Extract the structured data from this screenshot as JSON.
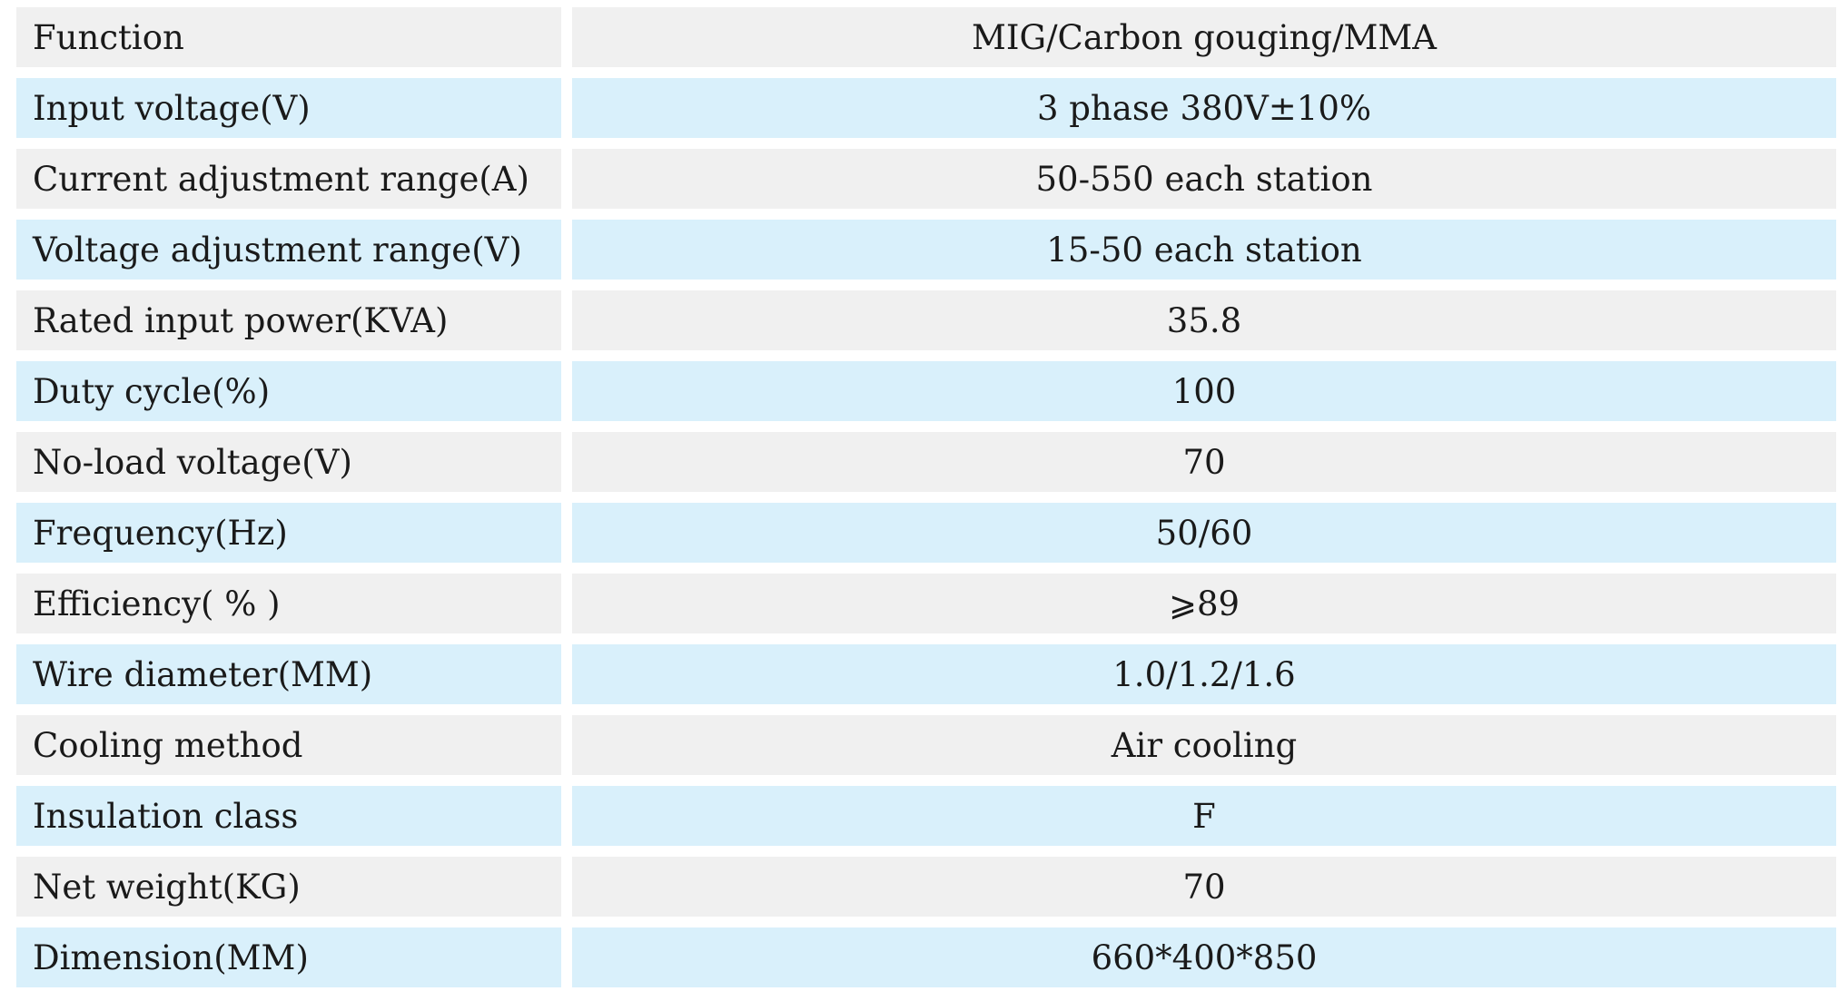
{
  "colors": {
    "row_gray": "#f0f0f0",
    "row_blue": "#d9f0fb",
    "text": "#1a1a1a"
  },
  "rows": [
    {
      "label": "Function",
      "value": "MIG/Carbon gouging/MMA"
    },
    {
      "label": "Input voltage(V)",
      "value": "3 phase 380V±10%"
    },
    {
      "label": "Current adjustment range(A)",
      "value": "50-550 each station"
    },
    {
      "label": "Voltage adjustment range(V)",
      "value": "15-50 each station"
    },
    {
      "label": "Rated input power(KVA)",
      "value": "35.8"
    },
    {
      "label": "Duty cycle(%)",
      "value": "100"
    },
    {
      "label": "No-load voltage(V)",
      "value": "70"
    },
    {
      "label": "Frequency(Hz)",
      "value": "50/60"
    },
    {
      "label": "Efficiency( % )",
      "value": "⩾89"
    },
    {
      "label": "Wire diameter(MM)",
      "value": "1.0/1.2/1.6"
    },
    {
      "label": "Cooling method",
      "value": "Air cooling"
    },
    {
      "label": "Insulation class",
      "value": "F"
    },
    {
      "label": "Net weight(KG)",
      "value": "70"
    },
    {
      "label": "Dimension(MM)",
      "value": "660*400*850"
    }
  ]
}
